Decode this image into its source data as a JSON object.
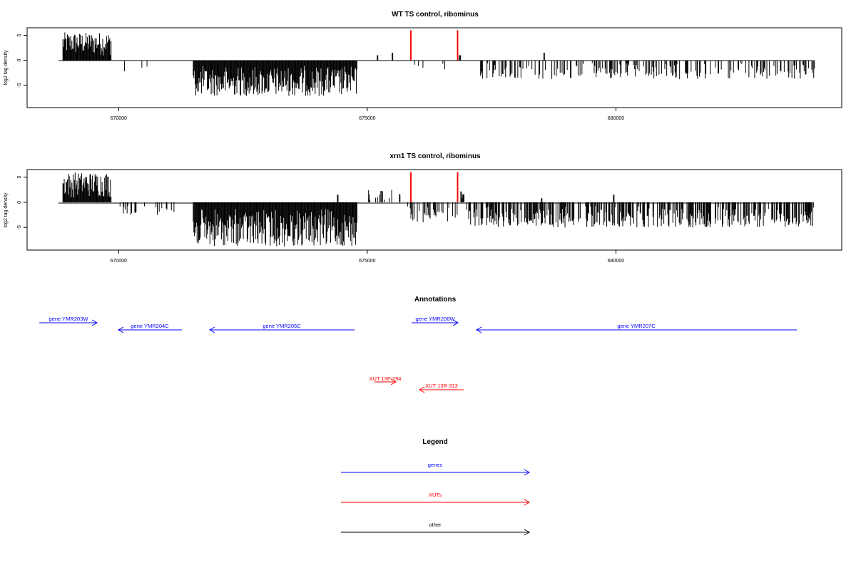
{
  "chart_data": [
    {
      "type": "bar",
      "title": "WT TS control, ribominus",
      "ylabel": "log2 tag density",
      "xlabel": "",
      "xlim": [
        668160,
        684540
      ],
      "ylim": [
        -9.5,
        6.5
      ],
      "x_ticks": [
        670000,
        675000,
        680000
      ],
      "x_tick_labels": [
        "670000",
        "675000",
        "680000"
      ],
      "y_ticks": [
        5,
        0,
        -5
      ],
      "y_tick_labels": [
        "5",
        "0",
        "-5"
      ],
      "grid": false,
      "series": [
        {
          "strand": "plus",
          "color": "#000000",
          "segments": [
            {
              "x0": 668880,
              "x1": 669850,
              "ymax": 5.6,
              "density": 1.0
            },
            {
              "x0": 675200,
              "x1": 675220,
              "ymax": 1.0,
              "density": 1.0
            },
            {
              "x0": 675500,
              "x1": 675520,
              "ymax": 1.5,
              "density": 1.0
            },
            {
              "x0": 676850,
              "x1": 676880,
              "ymax": 1.0,
              "density": 1.0
            },
            {
              "x0": 678550,
              "x1": 678570,
              "ymax": 1.5,
              "density": 1.0
            }
          ]
        },
        {
          "strand": "minus",
          "color": "#000000",
          "segments": [
            {
              "x0": 669990,
              "x1": 670800,
              "ymax": 3.0,
              "density": 0.08
            },
            {
              "x0": 671500,
              "x1": 674800,
              "ymax": 7.2,
              "density": 1.0
            },
            {
              "x0": 675900,
              "x1": 676700,
              "ymax": 2.2,
              "density": 0.1
            },
            {
              "x0": 677200,
              "x1": 684000,
              "ymax": 3.8,
              "density": 0.35
            }
          ]
        },
        {
          "strand": "plus",
          "color": "#ff0000",
          "segments": [
            {
              "x0": 675870,
              "x1": 675890,
              "ymax": 6.0,
              "density": 1.0
            },
            {
              "x0": 676810,
              "x1": 676830,
              "ymax": 6.0,
              "density": 1.0
            }
          ]
        }
      ]
    },
    {
      "type": "bar",
      "title": "xrn1 TS control, ribominus",
      "ylabel": "log2 tag density",
      "xlabel": "",
      "xlim": [
        668160,
        684540
      ],
      "ylim": [
        -9.5,
        6.5
      ],
      "x_ticks": [
        670000,
        675000,
        680000
      ],
      "x_tick_labels": [
        "670000",
        "675000",
        "680000"
      ],
      "y_ticks": [
        5,
        0,
        -5
      ],
      "y_tick_labels": [
        "5",
        "0",
        "-5"
      ],
      "grid": false,
      "series": [
        {
          "strand": "plus",
          "color": "#000000",
          "segments": [
            {
              "x0": 668880,
              "x1": 669850,
              "ymax": 6.0,
              "density": 1.0
            },
            {
              "x0": 674400,
              "x1": 674420,
              "ymax": 1.5,
              "density": 1.0
            },
            {
              "x0": 675000,
              "x1": 675700,
              "ymax": 2.5,
              "density": 0.25
            },
            {
              "x0": 676880,
              "x1": 676950,
              "ymax": 2.8,
              "density": 0.8
            },
            {
              "x0": 678500,
              "x1": 678520,
              "ymax": 0.8,
              "density": 1.0
            },
            {
              "x0": 679950,
              "x1": 679970,
              "ymax": 1.5,
              "density": 1.0
            }
          ]
        },
        {
          "strand": "minus",
          "color": "#000000",
          "segments": [
            {
              "x0": 669990,
              "x1": 671300,
              "ymax": 2.5,
              "density": 0.25
            },
            {
              "x0": 671500,
              "x1": 674800,
              "ymax": 8.8,
              "density": 1.0
            },
            {
              "x0": 675800,
              "x1": 676880,
              "ymax": 4.0,
              "density": 0.35
            },
            {
              "x0": 677000,
              "x1": 684000,
              "ymax": 5.0,
              "density": 0.6
            }
          ]
        },
        {
          "strand": "plus",
          "color": "#ff0000",
          "segments": [
            {
              "x0": 675870,
              "x1": 675890,
              "ymax": 6.0,
              "density": 1.0
            },
            {
              "x0": 676810,
              "x1": 676830,
              "ymax": 6.0,
              "density": 1.0
            }
          ]
        }
      ]
    }
  ],
  "annotations": {
    "title": "Annotations",
    "genes": [
      {
        "label": "gene YMR203W",
        "direction": "right"
      },
      {
        "label": "gene YMR204C",
        "direction": "left"
      },
      {
        "label": "gene YMR205C",
        "direction": "left"
      },
      {
        "label": "gene YMR206W",
        "direction": "right"
      },
      {
        "label": "gene YMR207C",
        "direction": "left"
      }
    ],
    "xuts": [
      {
        "label": "XUT 13F-294",
        "direction": "right"
      },
      {
        "label": "XUT 13R-313",
        "direction": "left"
      }
    ]
  },
  "legend": {
    "title": "Legend",
    "items": [
      {
        "label": "genes",
        "color": "#0000ff"
      },
      {
        "label": "XUTs",
        "color": "#ff0000"
      },
      {
        "label": "other",
        "color": "#000000"
      }
    ]
  },
  "colors": {
    "gene": "#0000ff",
    "xut": "#ff0000",
    "other": "#000000"
  }
}
